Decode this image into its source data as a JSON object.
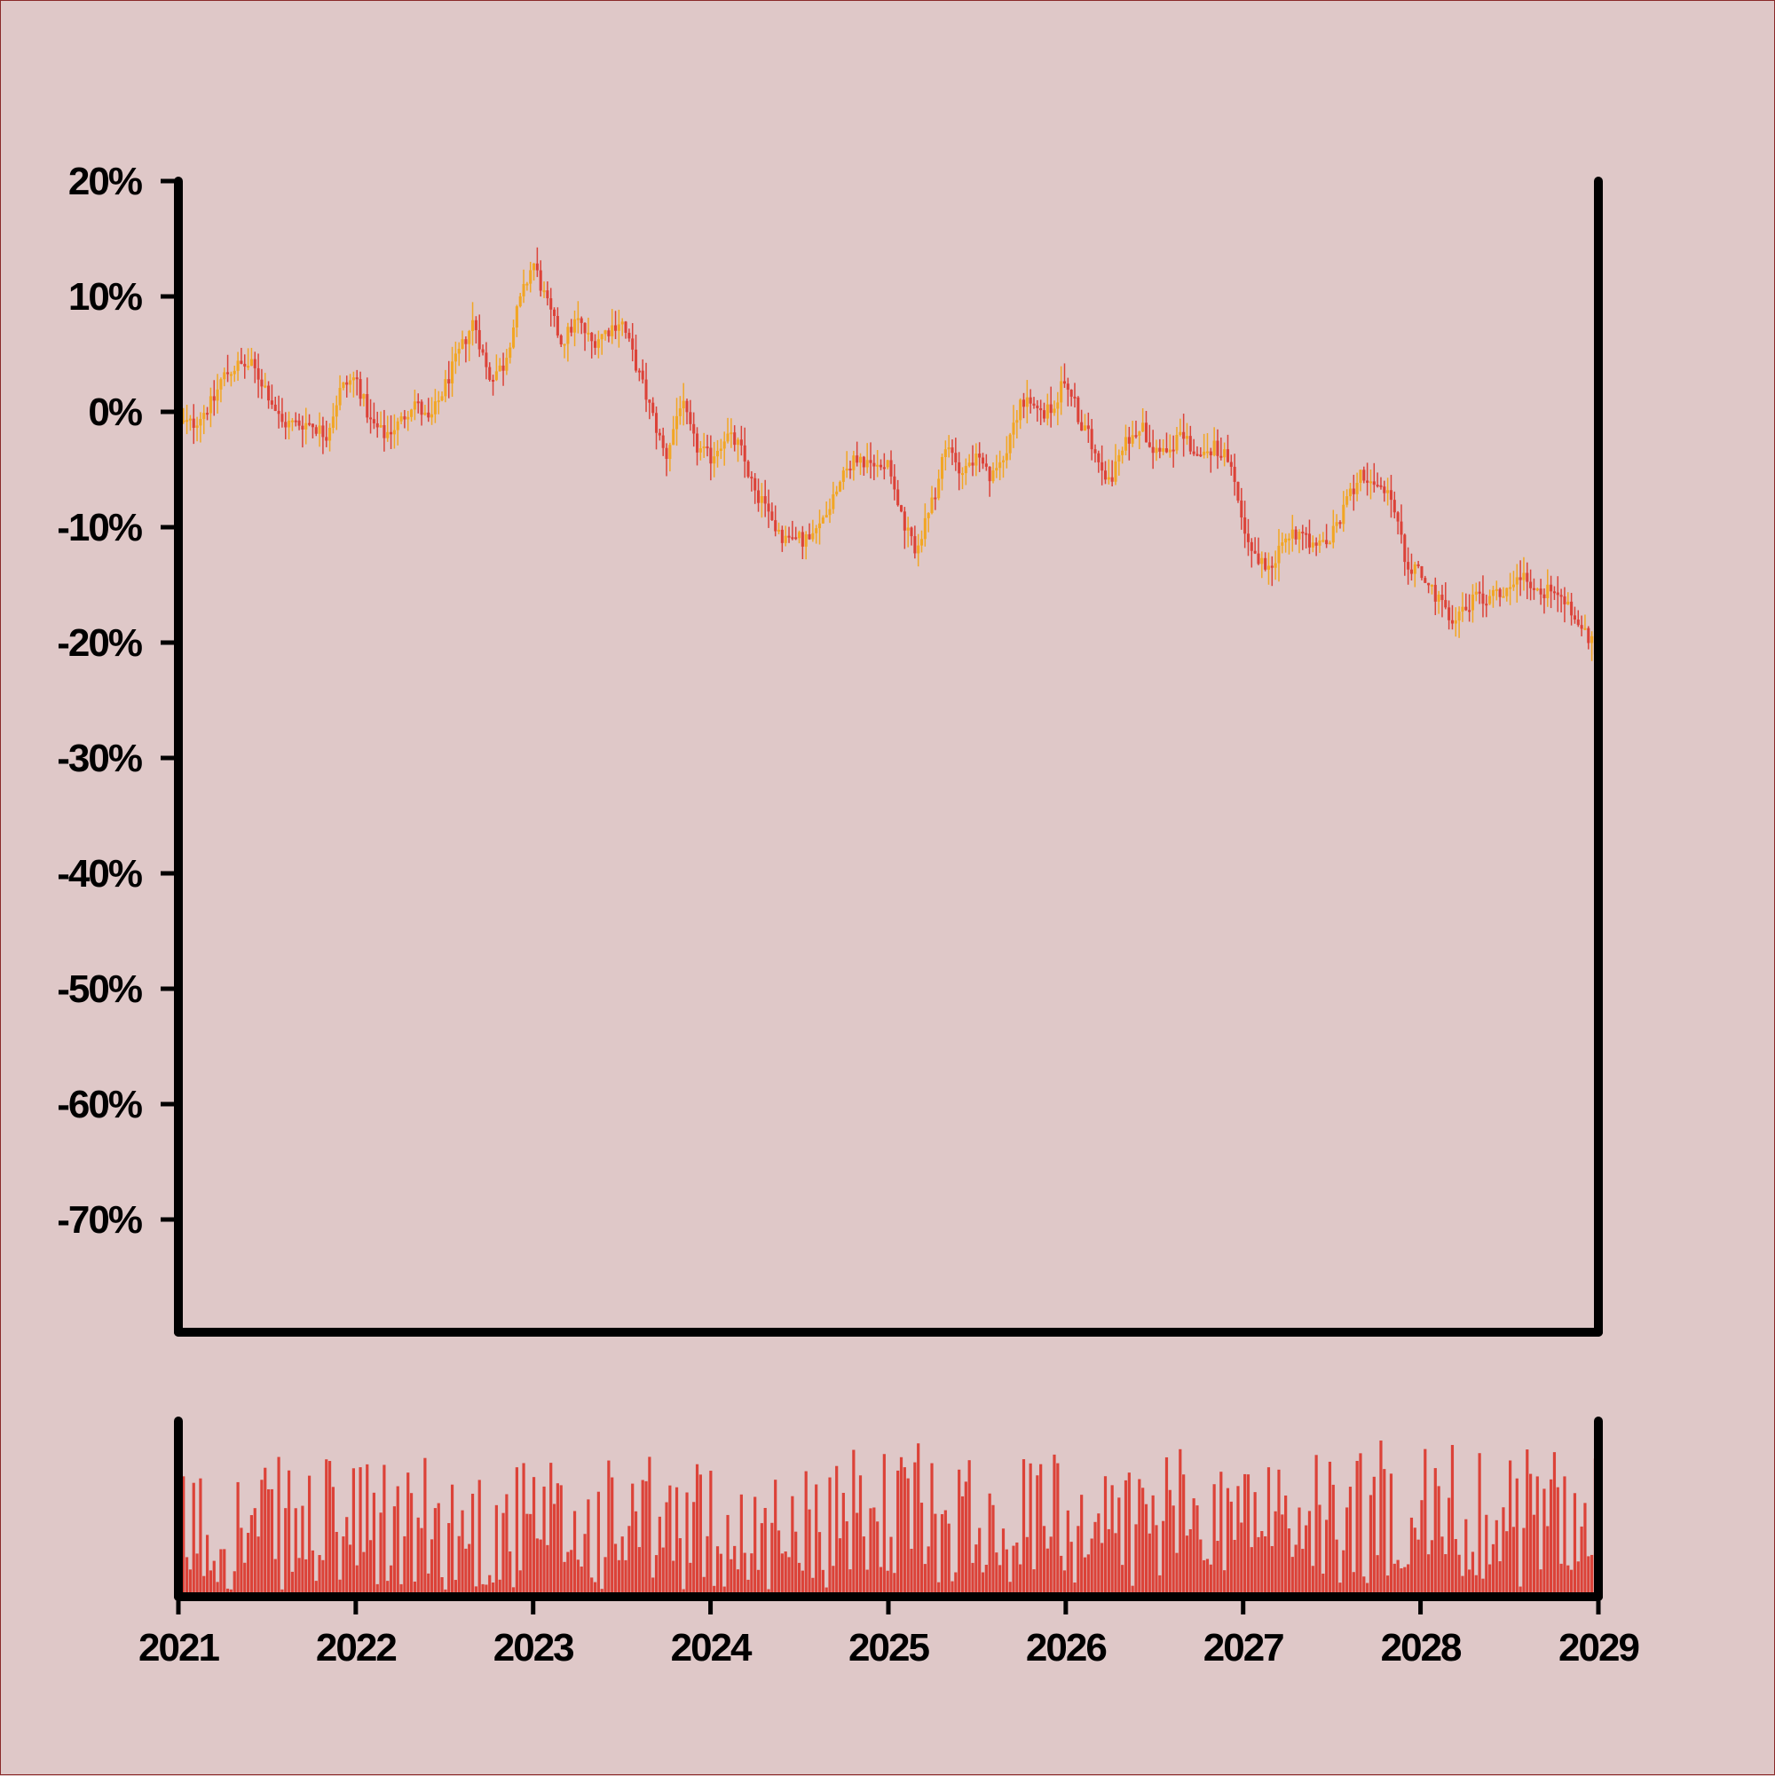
{
  "colors": {
    "background": "#dfc8c8",
    "frame": "#8a2a2a",
    "axis": "#000000",
    "candle_up": "#f2a623",
    "candle_down": "#dc4238",
    "volume": "#dc4238"
  },
  "chart_data": {
    "type": "candlestick",
    "title": "",
    "xlabel": "",
    "ylabel": "",
    "ylim": [
      -80,
      20
    ],
    "xlim": [
      "2021-01-01",
      "2029-01-01"
    ],
    "y_ticks": [
      "20%",
      "10%",
      "0%",
      "-10%",
      "-20%",
      "-30%",
      "-40%",
      "-50%",
      "-60%",
      "-70%"
    ],
    "y_tick_values": [
      20,
      10,
      0,
      -10,
      -20,
      -30,
      -40,
      -50,
      -60,
      -70
    ],
    "x_ticks": [
      "2021",
      "2022",
      "2023",
      "2024",
      "2025",
      "2026",
      "2027",
      "2028",
      "2029"
    ],
    "grid": false,
    "volume_panel": true,
    "price_path": [
      {
        "date": "2021-01-01",
        "value": -1
      },
      {
        "date": "2021-02-01",
        "value": -1
      },
      {
        "date": "2021-03-15",
        "value": 1
      },
      {
        "date": "2021-04-01",
        "value": 3
      },
      {
        "date": "2021-05-01",
        "value": 4
      },
      {
        "date": "2021-06-01",
        "value": 4
      },
      {
        "date": "2021-07-01",
        "value": 2
      },
      {
        "date": "2021-08-01",
        "value": -1
      },
      {
        "date": "2021-09-01",
        "value": -1
      },
      {
        "date": "2021-10-01",
        "value": -1
      },
      {
        "date": "2021-11-01",
        "value": -2
      },
      {
        "date": "2021-12-01",
        "value": 2
      },
      {
        "date": "2022-01-01",
        "value": 3
      },
      {
        "date": "2022-02-01",
        "value": -1
      },
      {
        "date": "2022-03-01",
        "value": -2
      },
      {
        "date": "2022-04-01",
        "value": -1
      },
      {
        "date": "2022-05-01",
        "value": 1
      },
      {
        "date": "2022-06-01",
        "value": -1
      },
      {
        "date": "2022-07-01",
        "value": 2
      },
      {
        "date": "2022-08-01",
        "value": 5
      },
      {
        "date": "2022-09-01",
        "value": 8
      },
      {
        "date": "2022-10-01",
        "value": 3
      },
      {
        "date": "2022-11-01",
        "value": 4
      },
      {
        "date": "2022-12-01",
        "value": 9
      },
      {
        "date": "2023-01-01",
        "value": 13
      },
      {
        "date": "2023-02-01",
        "value": 9
      },
      {
        "date": "2023-03-01",
        "value": 6
      },
      {
        "date": "2023-04-01",
        "value": 8
      },
      {
        "date": "2023-05-01",
        "value": 6
      },
      {
        "date": "2023-06-01",
        "value": 7
      },
      {
        "date": "2023-07-01",
        "value": 8
      },
      {
        "date": "2023-08-01",
        "value": 4
      },
      {
        "date": "2023-09-01",
        "value": 0
      },
      {
        "date": "2023-10-01",
        "value": -4
      },
      {
        "date": "2023-11-01",
        "value": 1
      },
      {
        "date": "2023-12-01",
        "value": -3
      },
      {
        "date": "2024-01-01",
        "value": -4
      },
      {
        "date": "2024-02-01",
        "value": -2
      },
      {
        "date": "2024-03-01",
        "value": -3
      },
      {
        "date": "2024-04-01",
        "value": -7
      },
      {
        "date": "2024-05-01",
        "value": -9
      },
      {
        "date": "2024-06-01",
        "value": -11
      },
      {
        "date": "2024-07-01",
        "value": -11
      },
      {
        "date": "2024-08-01",
        "value": -11
      },
      {
        "date": "2024-09-01",
        "value": -8
      },
      {
        "date": "2024-10-01",
        "value": -5
      },
      {
        "date": "2024-11-01",
        "value": -4
      },
      {
        "date": "2024-12-01",
        "value": -5
      },
      {
        "date": "2025-01-01",
        "value": -4
      },
      {
        "date": "2025-02-01",
        "value": -10
      },
      {
        "date": "2025-03-01",
        "value": -12
      },
      {
        "date": "2025-04-01",
        "value": -8
      },
      {
        "date": "2025-05-01",
        "value": -3
      },
      {
        "date": "2025-06-01",
        "value": -5
      },
      {
        "date": "2025-07-01",
        "value": -4
      },
      {
        "date": "2025-08-01",
        "value": -6
      },
      {
        "date": "2025-09-01",
        "value": -3
      },
      {
        "date": "2025-10-01",
        "value": 1
      },
      {
        "date": "2025-11-01",
        "value": 0
      },
      {
        "date": "2025-12-01",
        "value": 0
      },
      {
        "date": "2026-01-01",
        "value": 3
      },
      {
        "date": "2026-02-01",
        "value": -1
      },
      {
        "date": "2026-03-01",
        "value": -3
      },
      {
        "date": "2026-04-01",
        "value": -6
      },
      {
        "date": "2026-05-01",
        "value": -3
      },
      {
        "date": "2026-06-01",
        "value": -1
      },
      {
        "date": "2026-07-01",
        "value": -3
      },
      {
        "date": "2026-08-01",
        "value": -3
      },
      {
        "date": "2026-09-01",
        "value": -2
      },
      {
        "date": "2026-10-01",
        "value": -4
      },
      {
        "date": "2026-11-01",
        "value": -3
      },
      {
        "date": "2026-12-01",
        "value": -4
      },
      {
        "date": "2027-01-01",
        "value": -10
      },
      {
        "date": "2027-02-01",
        "value": -13
      },
      {
        "date": "2027-03-01",
        "value": -13
      },
      {
        "date": "2027-04-01",
        "value": -11
      },
      {
        "date": "2027-05-01",
        "value": -10
      },
      {
        "date": "2027-06-01",
        "value": -12
      },
      {
        "date": "2027-07-01",
        "value": -11
      },
      {
        "date": "2027-08-01",
        "value": -8
      },
      {
        "date": "2027-09-01",
        "value": -5
      },
      {
        "date": "2027-10-01",
        "value": -7
      },
      {
        "date": "2027-11-01",
        "value": -7
      },
      {
        "date": "2027-12-01",
        "value": -13
      },
      {
        "date": "2028-01-01",
        "value": -14
      },
      {
        "date": "2028-02-01",
        "value": -16
      },
      {
        "date": "2028-03-01",
        "value": -18
      },
      {
        "date": "2028-04-01",
        "value": -17
      },
      {
        "date": "2028-05-01",
        "value": -16
      },
      {
        "date": "2028-06-01",
        "value": -16
      },
      {
        "date": "2028-07-01",
        "value": -15
      },
      {
        "date": "2028-08-01",
        "value": -14
      },
      {
        "date": "2028-09-01",
        "value": -16
      },
      {
        "date": "2028-10-01",
        "value": -15
      },
      {
        "date": "2028-11-01",
        "value": -17
      },
      {
        "date": "2028-12-01",
        "value": -19
      },
      {
        "date": "2029-01-01",
        "value": -21
      }
    ]
  }
}
